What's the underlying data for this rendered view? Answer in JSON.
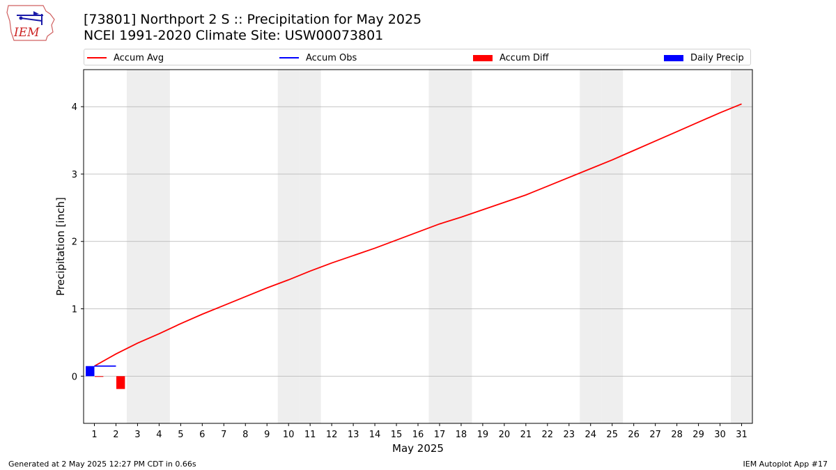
{
  "logo": {
    "text": "IEM"
  },
  "title": "[73801] Northport 2 S :: Precipitation for May 2025",
  "subtitle": "NCEI 1991-2020 Climate Site: USW00073801",
  "footer": {
    "generated": "Generated at 2 May 2025 12:27 PM CDT in 0.66s",
    "app": "IEM Autoplot App #17"
  },
  "colors": {
    "accum_avg": "#ff0000",
    "accum_obs": "#0000ff",
    "accum_diff": "#ff0000",
    "daily_precip": "#0000ff",
    "weekend_shade": "#eeeeee",
    "grid": "#b0b0b0"
  },
  "chart_data": {
    "type": "line",
    "xlabel": "May 2025",
    "ylabel": "Precipitation [inch]",
    "xlim": [
      0.5,
      31.5
    ],
    "ylim": [
      -0.7,
      4.55
    ],
    "yticks": [
      0,
      1,
      2,
      3,
      4
    ],
    "xticks": [
      1,
      2,
      3,
      4,
      5,
      6,
      7,
      8,
      9,
      10,
      11,
      12,
      13,
      14,
      15,
      16,
      17,
      18,
      19,
      20,
      21,
      22,
      23,
      24,
      25,
      26,
      27,
      28,
      29,
      30,
      31
    ],
    "grid": "horizontal",
    "legend_position": "top",
    "weekend_days": [
      3,
      4,
      10,
      11,
      17,
      18,
      24,
      25,
      31
    ],
    "series": [
      {
        "name": "Accum Avg",
        "type": "line",
        "x": [
          1,
          2,
          3,
          4,
          5,
          6,
          7,
          8,
          9,
          10,
          11,
          12,
          13,
          14,
          15,
          16,
          17,
          18,
          19,
          20,
          21,
          22,
          23,
          24,
          25,
          26,
          27,
          28,
          29,
          30,
          31
        ],
        "values": [
          0.15,
          0.33,
          0.49,
          0.63,
          0.78,
          0.92,
          1.05,
          1.18,
          1.31,
          1.43,
          1.56,
          1.68,
          1.79,
          1.9,
          2.02,
          2.14,
          2.26,
          2.36,
          2.47,
          2.58,
          2.69,
          2.82,
          2.95,
          3.08,
          3.21,
          3.35,
          3.49,
          3.63,
          3.77,
          3.91,
          4.04
        ]
      },
      {
        "name": "Accum Obs",
        "type": "line",
        "x": [
          1,
          2
        ],
        "values": [
          0.15,
          0.15
        ]
      },
      {
        "name": "Accum Diff",
        "type": "bar",
        "x": [
          1,
          2
        ],
        "values": [
          -0.01,
          -0.19
        ]
      },
      {
        "name": "Daily Precip",
        "type": "bar",
        "x": [
          1,
          2
        ],
        "values": [
          0.15,
          0.0
        ]
      }
    ]
  }
}
